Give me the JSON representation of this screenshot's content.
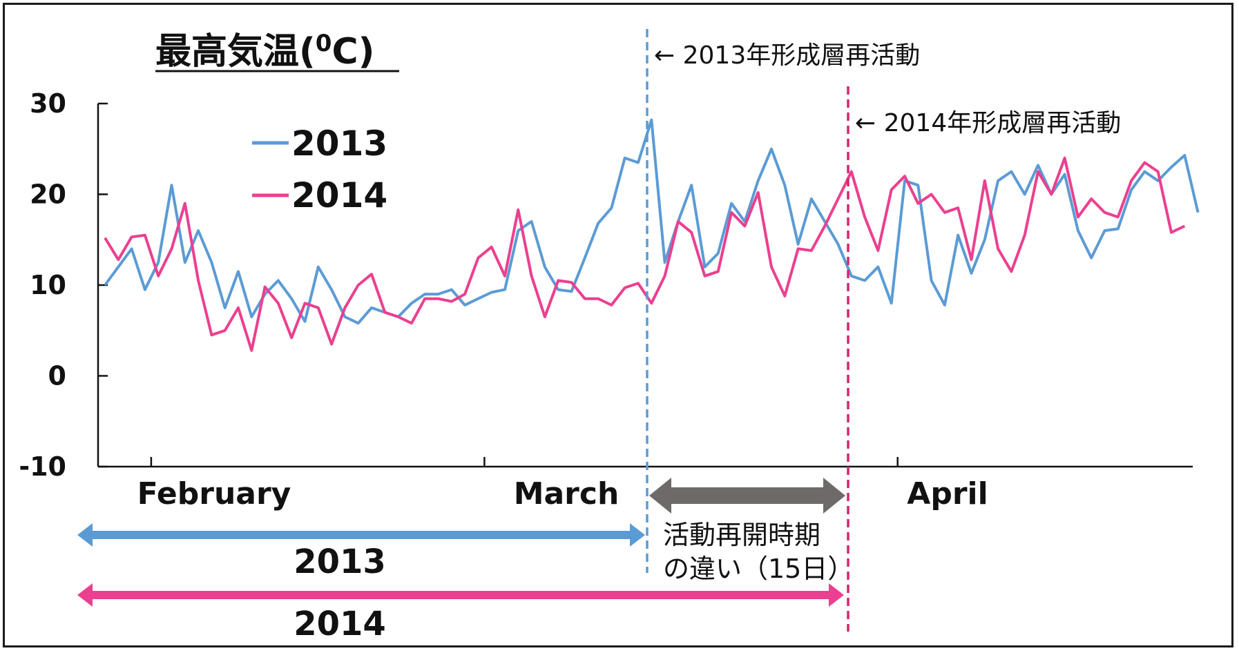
{
  "chart_data": {
    "type": "line",
    "title": "最高気温(",
    "title_sup": "0",
    "title_unit": "C)",
    "yticks": [
      "30",
      "20",
      "10",
      "0",
      "-10"
    ],
    "ylim": [
      -10,
      30
    ],
    "months": [
      "February",
      "March",
      "April"
    ],
    "x_range": [
      "Feb 1",
      "Apr 30"
    ],
    "legend_position": "top-left",
    "series": [
      {
        "name": "2013",
        "color": "#5b9bd5",
        "values": [
          10.0,
          12.0,
          14.0,
          9.5,
          12.5,
          21.0,
          12.5,
          16.0,
          12.5,
          7.5,
          11.5,
          6.5,
          9.0,
          10.5,
          8.5,
          6.0,
          12.0,
          9.5,
          6.5,
          5.8,
          7.5,
          7.0,
          6.5,
          8.0,
          9.0,
          9.0,
          9.5,
          7.8,
          8.5,
          9.2,
          9.5,
          16.0,
          17.0,
          12.0,
          9.5,
          9.3,
          13.0,
          16.8,
          18.5,
          24.0,
          23.5,
          28.2,
          12.5,
          17.0,
          21.0,
          12.0,
          13.5,
          19.0,
          17.0,
          21.5,
          25.0,
          21.0,
          14.5,
          19.5,
          17.0,
          14.5,
          11.0,
          10.5,
          12.0,
          8.0,
          21.5,
          21.0,
          10.5,
          7.8,
          15.5,
          11.3,
          15.0,
          21.5,
          22.5,
          20.0,
          23.2,
          20.0,
          22.2,
          16.0,
          13.0,
          16.0,
          16.2,
          20.5,
          22.5,
          21.5,
          23.0,
          24.3,
          18.0
        ]
      },
      {
        "name": "2014",
        "color": "#ec3f8f",
        "values": [
          15.2,
          12.8,
          15.3,
          15.5,
          11.0,
          14.0,
          19.0,
          10.5,
          4.5,
          5.0,
          7.5,
          2.8,
          9.8,
          8.0,
          4.2,
          8.0,
          7.5,
          3.5,
          7.5,
          10.0,
          11.2,
          7.0,
          6.5,
          5.8,
          8.5,
          8.5,
          8.2,
          9.0,
          13.0,
          14.2,
          11.0,
          18.3,
          11.0,
          6.5,
          10.5,
          10.3,
          8.5,
          8.5,
          7.8,
          9.7,
          10.2,
          8.0,
          11.0,
          17.0,
          15.8,
          11.0,
          11.5,
          18.0,
          16.5,
          20.2,
          12.0,
          8.8,
          14.0,
          13.8,
          16.5,
          19.5,
          22.5,
          17.5,
          13.8,
          20.5,
          22.0,
          19.0,
          20.0,
          18.0,
          18.5,
          12.8,
          21.5,
          14.0,
          11.5,
          15.5,
          22.5,
          20.0,
          24.0,
          17.5,
          19.5,
          18.0,
          17.5,
          21.5,
          23.5,
          22.5,
          15.8,
          16.5
        ]
      }
    ],
    "reactivation_lines": [
      {
        "year": "2013",
        "label": "← 2013年形成層再活動",
        "color": "#5b9bd5"
      },
      {
        "year": "2014",
        "label": "← 2014年形成層再活動",
        "color": "#d6246e"
      }
    ],
    "periods": [
      {
        "label": "2013",
        "color": "#5b9bd5"
      },
      {
        "label": "2014",
        "color": "#ec3f8f"
      }
    ],
    "difference_label": [
      "活動再開時期",
      "の違い（15日）"
    ],
    "difference_arrow_color": "#6e6a6a"
  }
}
